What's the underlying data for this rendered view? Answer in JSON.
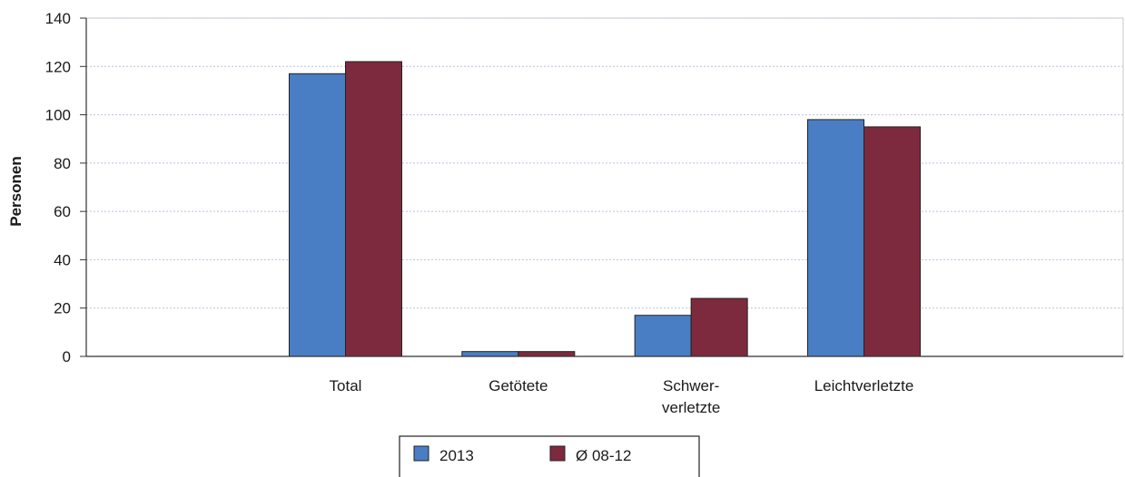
{
  "chart_data": {
    "type": "bar",
    "title": "",
    "xlabel": "",
    "ylabel": "Personen",
    "ylim": [
      0,
      140
    ],
    "yticks": [
      0,
      20,
      40,
      60,
      80,
      100,
      120,
      140
    ],
    "grid": true,
    "legend_position": "bottom",
    "slots": 6,
    "categories": [
      {
        "lines": [
          "Total"
        ]
      },
      {
        "lines": [
          "Getötete"
        ]
      },
      {
        "lines": [
          "Schwer-",
          "verletzte"
        ]
      },
      {
        "lines": [
          "Leichtverletzte"
        ]
      }
    ],
    "series": [
      {
        "name": "2013",
        "color": "#4a7ec4",
        "values": [
          117,
          2,
          17,
          98
        ]
      },
      {
        "name": "Ø 08-12",
        "color": "#7d2a3e",
        "values": [
          122,
          2,
          24,
          95
        ]
      }
    ]
  }
}
